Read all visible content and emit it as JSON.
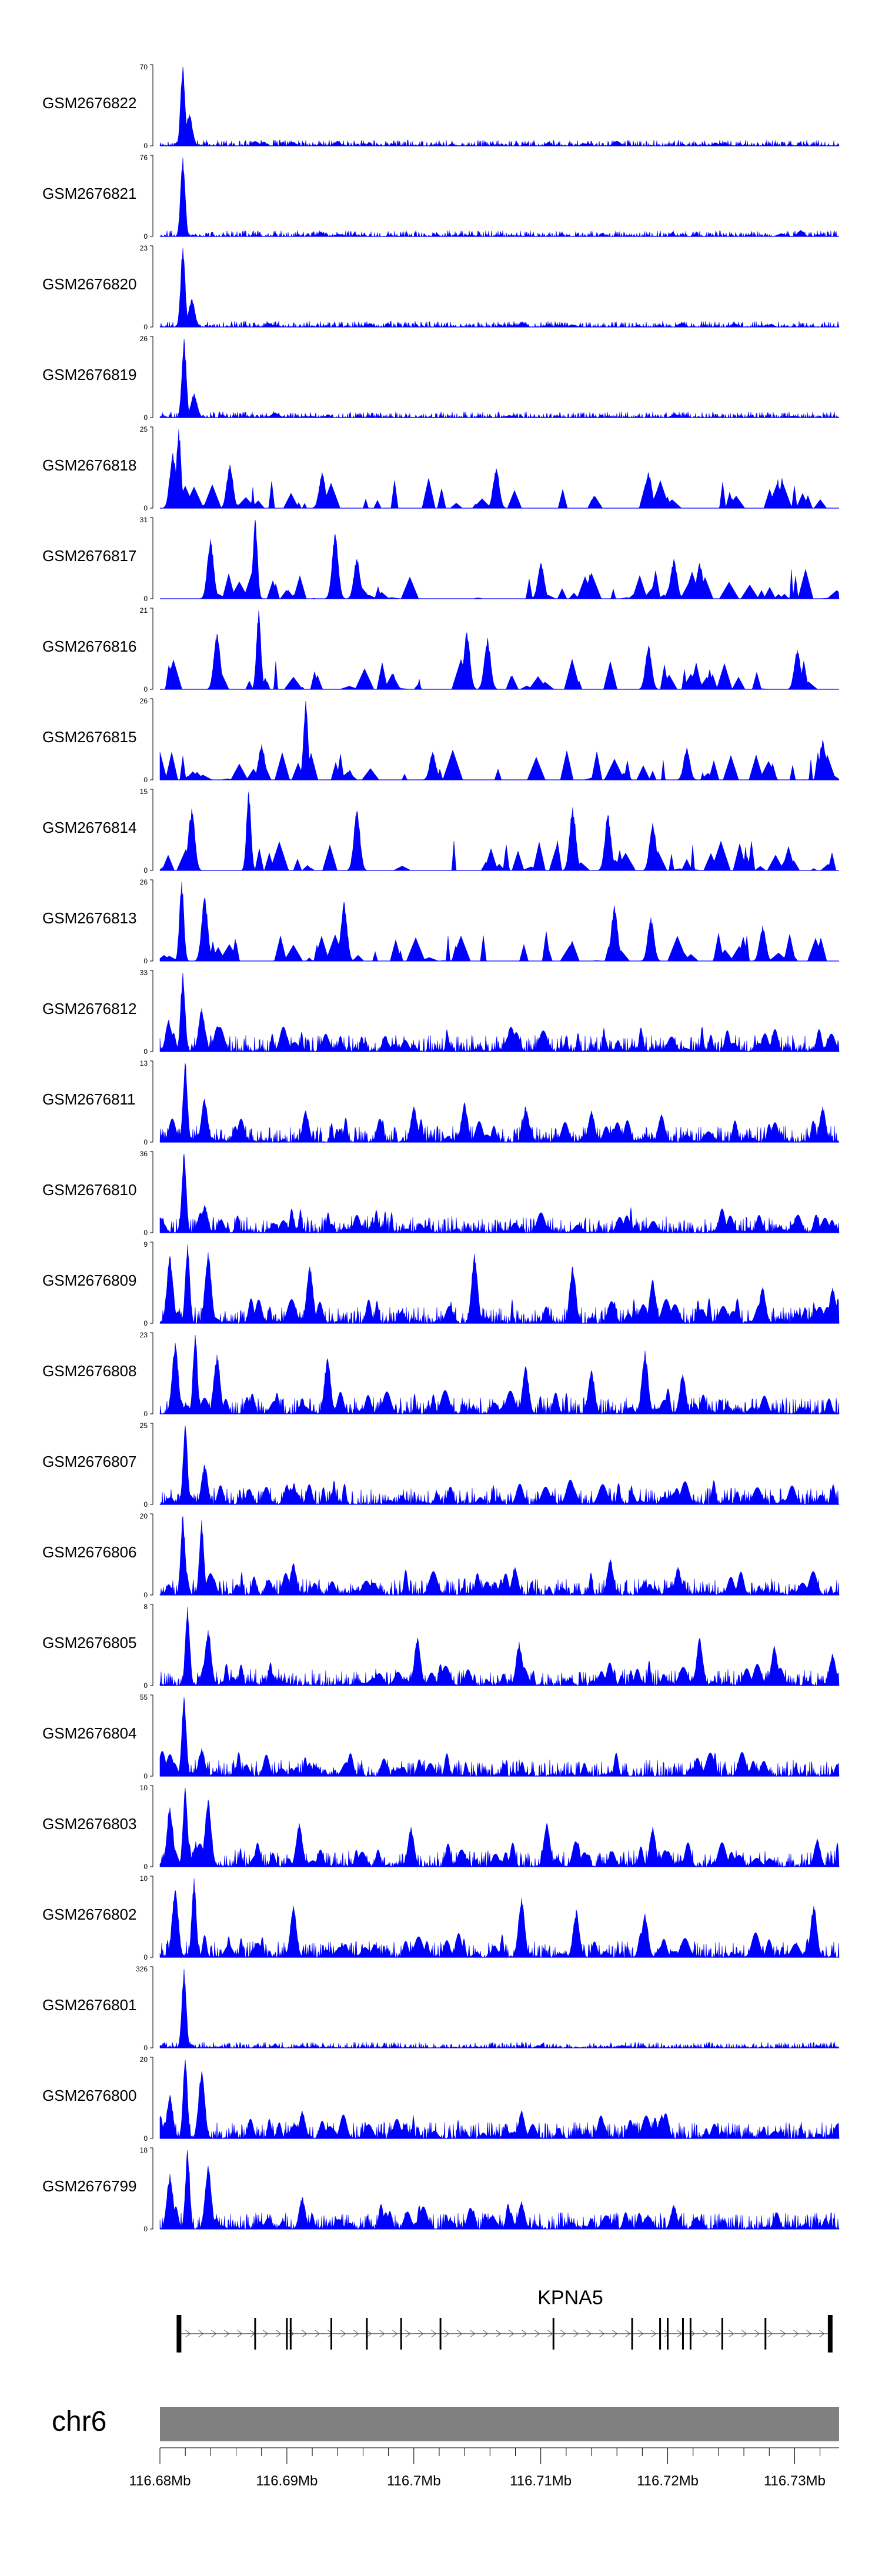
{
  "chart_data": {
    "type": "area",
    "title": "",
    "region": {
      "chromosome": "chr6",
      "start_mb": 116.68,
      "end_mb": 116.733
    },
    "gene": {
      "name": "KPNA5",
      "exon_positions_mb": [
        116.6815,
        116.6875,
        116.69,
        116.6903,
        116.6935,
        116.6963,
        116.699,
        116.7021,
        116.711,
        116.7172,
        116.7194,
        116.72,
        116.7212,
        116.7218,
        116.7243,
        116.7277,
        116.7328
      ]
    },
    "x_axis": {
      "ticks_mb": [
        116.68,
        116.69,
        116.7,
        116.71,
        116.72,
        116.73
      ],
      "tick_labels": [
        "116.68Mb",
        "116.69Mb",
        "116.7Mb",
        "116.71Mb",
        "116.72Mb",
        "116.73Mb"
      ]
    },
    "series": [
      {
        "name": "GSM2676822",
        "ymax": 70,
        "ymin": 0,
        "style": "baseline",
        "peaks": [
          [
            116.6818,
            1.0
          ],
          [
            116.6823,
            0.4
          ]
        ]
      },
      {
        "name": "GSM2676821",
        "ymax": 76,
        "ymin": 0,
        "style": "baseline",
        "peaks": [
          [
            116.6818,
            1.0
          ],
          [
            116.7305,
            0.08
          ]
        ]
      },
      {
        "name": "GSM2676820",
        "ymax": 23,
        "ymin": 0,
        "style": "baseline",
        "peaks": [
          [
            116.6818,
            1.0
          ],
          [
            116.6825,
            0.35
          ]
        ]
      },
      {
        "name": "GSM2676819",
        "ymax": 26,
        "ymin": 0,
        "style": "baseline",
        "peaks": [
          [
            116.6819,
            1.0
          ],
          [
            116.6827,
            0.3
          ]
        ]
      },
      {
        "name": "GSM2676818",
        "ymax": 25,
        "ymin": 0,
        "style": "sparse",
        "peaks": [
          [
            116.6815,
            1.0
          ],
          [
            116.681,
            0.7
          ],
          [
            116.6855,
            0.55
          ],
          [
            116.6928,
            0.45
          ],
          [
            116.7065,
            0.5
          ],
          [
            116.7185,
            0.45
          ]
        ]
      },
      {
        "name": "GSM2676817",
        "ymax": 31,
        "ymin": 0,
        "style": "sparse",
        "peaks": [
          [
            116.6875,
            1.0
          ],
          [
            116.684,
            0.75
          ],
          [
            116.6938,
            0.82
          ],
          [
            116.6955,
            0.5
          ],
          [
            116.71,
            0.45
          ],
          [
            116.7205,
            0.5
          ],
          [
            116.7225,
            0.45
          ]
        ]
      },
      {
        "name": "GSM2676816",
        "ymax": 21,
        "ymin": 0,
        "style": "sparse",
        "peaks": [
          [
            116.6878,
            1.0
          ],
          [
            116.6845,
            0.7
          ],
          [
            116.7042,
            0.72
          ],
          [
            116.7058,
            0.65
          ],
          [
            116.7185,
            0.55
          ],
          [
            116.7302,
            0.5
          ]
        ]
      },
      {
        "name": "GSM2676815",
        "ymax": 26,
        "ymin": 0,
        "style": "sparse",
        "peaks": [
          [
            116.6915,
            1.0
          ],
          [
            116.688,
            0.45
          ],
          [
            116.7015,
            0.35
          ],
          [
            116.7215,
            0.4
          ],
          [
            116.7322,
            0.5
          ]
        ]
      },
      {
        "name": "GSM2676814",
        "ymax": 15,
        "ymin": 0,
        "style": "sparse",
        "peaks": [
          [
            116.687,
            1.0
          ],
          [
            116.6825,
            0.78
          ],
          [
            116.6955,
            0.75
          ],
          [
            116.7125,
            0.8
          ],
          [
            116.7153,
            0.7
          ],
          [
            116.7188,
            0.6
          ]
        ]
      },
      {
        "name": "GSM2676813",
        "ymax": 26,
        "ymin": 0,
        "style": "sparse",
        "peaks": [
          [
            116.6817,
            1.0
          ],
          [
            116.6835,
            0.8
          ],
          [
            116.6945,
            0.75
          ],
          [
            116.7158,
            0.7
          ],
          [
            116.7187,
            0.55
          ],
          [
            116.7275,
            0.45
          ]
        ]
      },
      {
        "name": "GSM2676812",
        "ymax": 33,
        "ymin": 0,
        "style": "dense",
        "peaks": [
          [
            116.6818,
            1.0
          ],
          [
            116.6833,
            0.55
          ],
          [
            116.6807,
            0.4
          ],
          [
            116.7074,
            0.18
          ]
        ]
      },
      {
        "name": "GSM2676811",
        "ymax": 13,
        "ymin": 0,
        "style": "dense",
        "peaks": [
          [
            116.682,
            1.0
          ],
          [
            116.6835,
            0.55
          ],
          [
            116.6915,
            0.4
          ],
          [
            116.7,
            0.45
          ],
          [
            116.704,
            0.5
          ],
          [
            116.7088,
            0.45
          ],
          [
            116.714,
            0.4
          ],
          [
            116.7195,
            0.35
          ],
          [
            116.7322,
            0.45
          ]
        ]
      },
      {
        "name": "GSM2676810",
        "ymax": 36,
        "ymin": 0,
        "style": "dense",
        "peaks": [
          [
            116.6819,
            1.0
          ],
          [
            116.6835,
            0.35
          ],
          [
            116.7005,
            0.12
          ],
          [
            116.708,
            0.12
          ]
        ]
      },
      {
        "name": "GSM2676809",
        "ymax": 9,
        "ymin": 0,
        "style": "dense",
        "peaks": [
          [
            116.6822,
            1.0
          ],
          [
            116.6808,
            0.85
          ],
          [
            116.6838,
            0.9
          ],
          [
            116.6918,
            0.72
          ],
          [
            116.7048,
            0.88
          ],
          [
            116.7125,
            0.72
          ],
          [
            116.7188,
            0.55
          ],
          [
            116.7275,
            0.45
          ],
          [
            116.733,
            0.45
          ]
        ]
      },
      {
        "name": "GSM2676808",
        "ymax": 23,
        "ymin": 0,
        "style": "dense",
        "peaks": [
          [
            116.6812,
            0.9
          ],
          [
            116.6828,
            1.0
          ],
          [
            116.6845,
            0.75
          ],
          [
            116.6932,
            0.7
          ],
          [
            116.7088,
            0.6
          ],
          [
            116.714,
            0.55
          ],
          [
            116.7182,
            0.8
          ],
          [
            116.7212,
            0.5
          ]
        ]
      },
      {
        "name": "GSM2676807",
        "ymax": 25,
        "ymin": 0,
        "style": "dense",
        "peaks": [
          [
            116.682,
            1.0
          ],
          [
            116.6835,
            0.5
          ],
          [
            116.69,
            0.25
          ],
          [
            116.7205,
            0.15
          ]
        ]
      },
      {
        "name": "GSM2676806",
        "ymax": 20,
        "ymin": 0,
        "style": "dense",
        "peaks": [
          [
            116.6818,
            1.0
          ],
          [
            116.6833,
            0.95
          ],
          [
            116.6905,
            0.4
          ],
          [
            116.708,
            0.35
          ],
          [
            116.7155,
            0.45
          ],
          [
            116.7208,
            0.35
          ]
        ]
      },
      {
        "name": "GSM2676805",
        "ymax": 8,
        "ymin": 0,
        "style": "dense",
        "peaks": [
          [
            116.6822,
            1.0
          ],
          [
            116.6838,
            0.7
          ],
          [
            116.7003,
            0.6
          ],
          [
            116.7083,
            0.55
          ],
          [
            116.7225,
            0.6
          ],
          [
            116.7284,
            0.5
          ],
          [
            116.733,
            0.4
          ]
        ]
      },
      {
        "name": "GSM2676804",
        "ymax": 55,
        "ymin": 0,
        "style": "dense",
        "peaks": [
          [
            116.6819,
            1.0
          ],
          [
            116.6833,
            0.35
          ],
          [
            116.6868,
            0.15
          ]
        ]
      },
      {
        "name": "GSM2676803",
        "ymax": 10,
        "ymin": 0,
        "style": "dense",
        "peaks": [
          [
            116.682,
            1.0
          ],
          [
            116.6808,
            0.75
          ],
          [
            116.6838,
            0.85
          ],
          [
            116.691,
            0.55
          ],
          [
            116.6998,
            0.5
          ],
          [
            116.7105,
            0.55
          ],
          [
            116.7188,
            0.5
          ],
          [
            116.7318,
            0.35
          ]
        ]
      },
      {
        "name": "GSM2676802",
        "ymax": 10,
        "ymin": 0,
        "style": "dense",
        "peaks": [
          [
            116.6827,
            1.0
          ],
          [
            116.6812,
            0.85
          ],
          [
            116.6905,
            0.65
          ],
          [
            116.7085,
            0.75
          ],
          [
            116.7128,
            0.6
          ],
          [
            116.7182,
            0.55
          ],
          [
            116.7315,
            0.65
          ]
        ]
      },
      {
        "name": "GSM2676801",
        "ymax": 326,
        "ymin": 0,
        "style": "baseline",
        "peaks": [
          [
            116.6819,
            1.0
          ]
        ]
      },
      {
        "name": "GSM2676800",
        "ymax": 20,
        "ymin": 0,
        "style": "dense",
        "peaks": [
          [
            116.682,
            1.0
          ],
          [
            116.6833,
            0.85
          ],
          [
            116.6808,
            0.55
          ],
          [
            116.6912,
            0.35
          ],
          [
            116.7085,
            0.35
          ],
          [
            116.7195,
            0.3
          ]
        ]
      },
      {
        "name": "GSM2676799",
        "ymax": 18,
        "ymin": 0,
        "style": "dense",
        "peaks": [
          [
            116.6822,
            1.0
          ],
          [
            116.6808,
            0.7
          ],
          [
            116.6838,
            0.8
          ],
          [
            116.6912,
            0.4
          ],
          [
            116.7085,
            0.35
          ],
          [
            116.7205,
            0.3
          ]
        ]
      }
    ]
  }
}
